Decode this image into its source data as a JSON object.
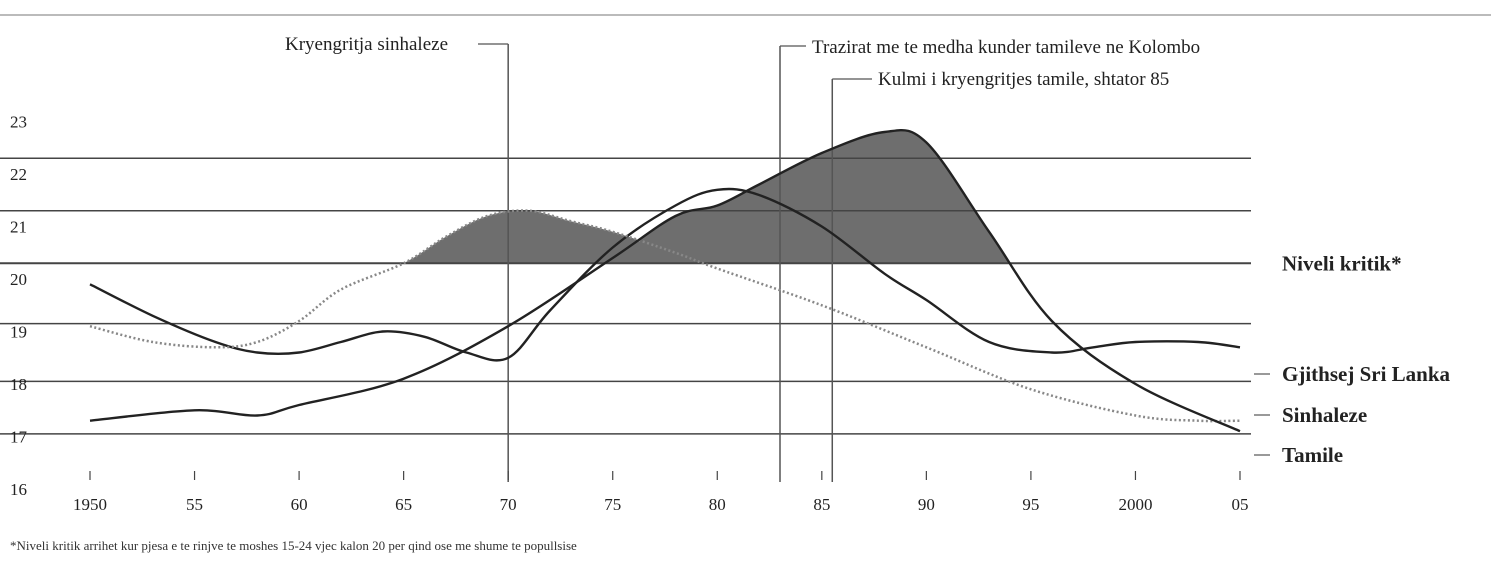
{
  "chart_data": {
    "type": "line",
    "title": "",
    "xlabel": "",
    "ylabel": "",
    "x_tick_labels": [
      "1950",
      "55",
      "60",
      "65",
      "70",
      "75",
      "80",
      "85",
      "90",
      "95",
      "2000",
      "05"
    ],
    "x_ticks": [
      1950,
      1955,
      1960,
      1965,
      1970,
      1975,
      1980,
      1985,
      1990,
      1995,
      2000,
      2005
    ],
    "xlim": [
      1950,
      2005
    ],
    "y_ticks": [
      16,
      17,
      18,
      19,
      20,
      21,
      22,
      23
    ],
    "ylim": [
      16,
      23.5
    ],
    "grid": "horizontal",
    "critical_level": 20.3,
    "critical_label": "Niveli kritik*",
    "events": [
      {
        "label": "Kryengritja sinhaleze",
        "x": 1970
      },
      {
        "label": "Trazirat me te medha kunder tamileve ne Kolombo",
        "x": 1983
      },
      {
        "label": "Kulmi i kryengritjes tamile, shtator 85",
        "x": 1985.5
      }
    ],
    "series": [
      {
        "name": "Gjithsej Sri Lanka",
        "style": "solid",
        "x": [
          1950,
          1953,
          1956,
          1958,
          1960,
          1962,
          1964,
          1966,
          1968,
          1970,
          1972,
          1975,
          1978,
          1980,
          1982,
          1985,
          1988,
          1990,
          1993,
          1996,
          1998,
          2000,
          2003,
          2005
        ],
        "y": [
          19.9,
          19.3,
          18.8,
          18.6,
          18.6,
          18.8,
          19.0,
          18.9,
          18.6,
          18.5,
          19.4,
          20.6,
          21.4,
          21.7,
          21.6,
          21.0,
          20.1,
          19.6,
          18.8,
          18.6,
          18.7,
          18.8,
          18.8,
          18.7
        ]
      },
      {
        "name": "Sinhaleze",
        "style": "dotted",
        "x": [
          1950,
          1953,
          1956,
          1958,
          1960,
          1962,
          1965,
          1967,
          1969,
          1971,
          1973,
          1975,
          1978,
          1980,
          1985,
          1990,
          1995,
          2000,
          2003,
          2005
        ],
        "y": [
          19.1,
          18.8,
          18.7,
          18.8,
          19.2,
          19.8,
          20.3,
          20.8,
          21.2,
          21.3,
          21.1,
          20.9,
          20.5,
          20.2,
          19.5,
          18.7,
          17.9,
          17.4,
          17.3,
          17.3
        ]
      },
      {
        "name": "Tamile",
        "style": "solid",
        "x": [
          1950,
          1955,
          1958,
          1960,
          1965,
          1970,
          1975,
          1978,
          1980,
          1982,
          1985,
          1988,
          1990,
          1993,
          1996,
          2000,
          2005
        ],
        "y": [
          17.3,
          17.5,
          17.4,
          17.6,
          18.1,
          19.1,
          20.4,
          21.2,
          21.4,
          21.8,
          22.4,
          22.8,
          22.6,
          20.9,
          19.2,
          18.0,
          17.1
        ]
      }
    ],
    "footnote": "*Niveli kritik arrihet kur pjesa e te rinjve te moshes 15-24 vjec kalon 20 per qind ose me shume te popullsise"
  }
}
